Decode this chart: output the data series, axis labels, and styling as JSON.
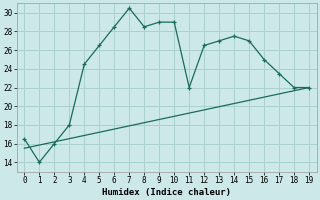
{
  "xlabel": "Humidex (Indice chaleur)",
  "bg_color": "#cce8e8",
  "grid_color": "#aad0d0",
  "line_color": "#1a6b5a",
  "line1_x": [
    0,
    1,
    2,
    3,
    4,
    5,
    6,
    7,
    8,
    9,
    10,
    11,
    12,
    13,
    14,
    15,
    16,
    17,
    18,
    19
  ],
  "line1_y": [
    16.5,
    14.0,
    16.0,
    18.0,
    24.5,
    26.5,
    28.5,
    30.5,
    28.5,
    29.0,
    29.0,
    22.0,
    26.5,
    27.0,
    27.5,
    27.0,
    25.0,
    23.5,
    22.0,
    22.0
  ],
  "line2_x": [
    0,
    19
  ],
  "line2_y": [
    15.5,
    22.0
  ],
  "ylim": [
    13,
    31
  ],
  "yticks": [
    14,
    16,
    18,
    20,
    22,
    24,
    26,
    28,
    30
  ],
  "xlim": [
    -0.5,
    19.5
  ],
  "xticks": [
    0,
    1,
    2,
    3,
    4,
    5,
    6,
    7,
    8,
    9,
    10,
    11,
    12,
    13,
    14,
    15,
    16,
    17,
    18,
    19
  ],
  "label_fontsize": 6.5,
  "tick_fontsize": 5.5
}
